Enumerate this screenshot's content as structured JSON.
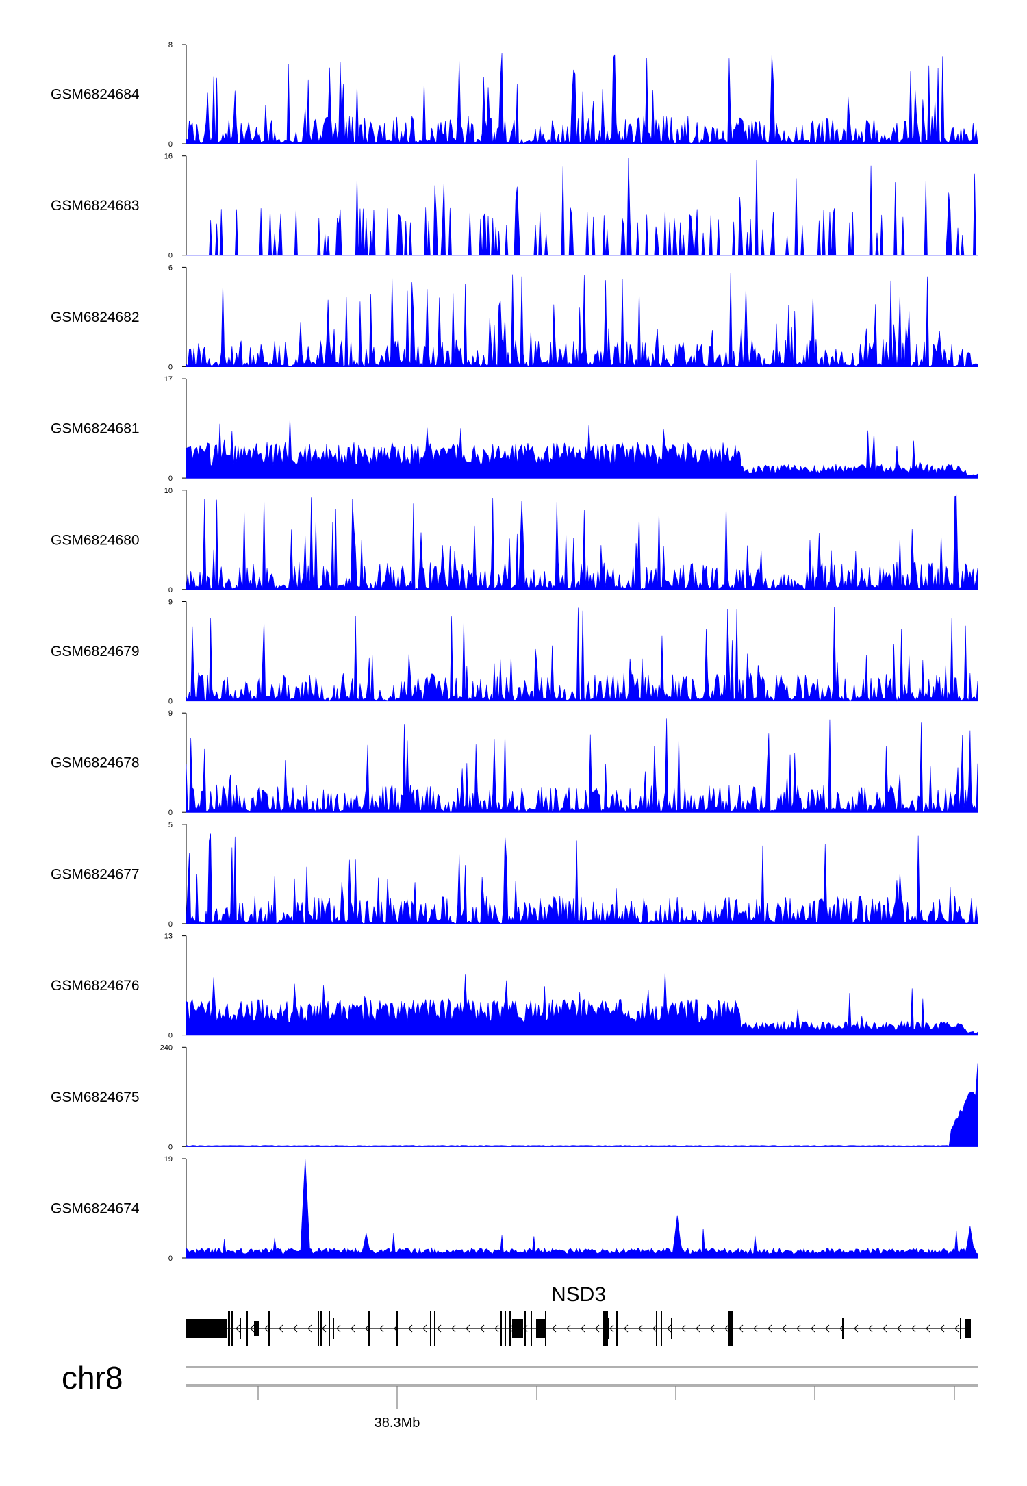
{
  "figure": {
    "chromosome": "chr8",
    "colors": {
      "signal": "#0000ff",
      "axis": "#000000",
      "gene": "#000000",
      "ruler": "#808080"
    },
    "tracks": [
      {
        "name": "GSM6824684",
        "ymax": 8,
        "ymin": 0,
        "profile": "spiky"
      },
      {
        "name": "GSM6824683",
        "ymax": 16,
        "ymin": 0,
        "profile": "sparse-spikes"
      },
      {
        "name": "GSM6824682",
        "ymax": 6,
        "ymin": 0,
        "profile": "spiky"
      },
      {
        "name": "GSM6824681",
        "ymax": 17,
        "ymin": 0,
        "profile": "dense-decay"
      },
      {
        "name": "GSM6824680",
        "ymax": 10,
        "ymin": 0,
        "profile": "spiky"
      },
      {
        "name": "GSM6824679",
        "ymax": 9,
        "ymin": 0,
        "profile": "spiky"
      },
      {
        "name": "GSM6824678",
        "ymax": 9,
        "ymin": 0,
        "profile": "spiky"
      },
      {
        "name": "GSM6824677",
        "ymax": 5,
        "ymin": 0,
        "profile": "spiky"
      },
      {
        "name": "GSM6824676",
        "ymax": 13,
        "ymin": 0,
        "profile": "dense-decay"
      },
      {
        "name": "GSM6824675",
        "ymax": 240,
        "ymin": 0,
        "profile": "end-peak"
      },
      {
        "name": "GSM6824674",
        "ymax": 19,
        "ymin": 0,
        "profile": "low-peaks"
      }
    ],
    "gene": {
      "name": "NSD3",
      "strand": "-"
    },
    "ruler": {
      "tick_label": "38.3Mb"
    }
  }
}
